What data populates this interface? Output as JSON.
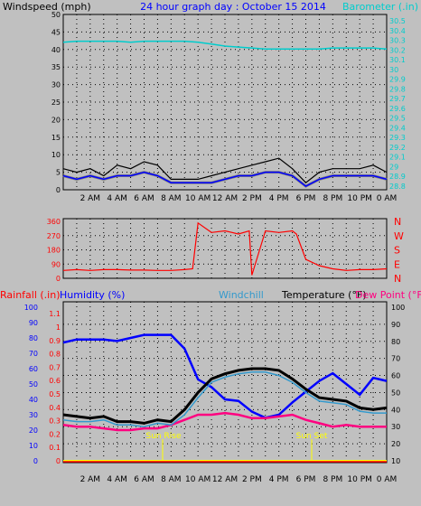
{
  "header": {
    "left_label": "Windspeed (mph)",
    "center_title": "24 hour graph day : October 15 2014",
    "right_label": "Barometer (.in)"
  },
  "colors": {
    "background": "#c0c0c0",
    "wind_speed": "#000000",
    "wind_avg": "#0000ff",
    "wind_gray": "#808080",
    "barometer": "#00cccc",
    "title_blue": "#0000ff",
    "direction": "#ff0000",
    "temperature": "#000000",
    "windchill": "#3399cc",
    "humidity": "#0000ff",
    "dewpoint": "#ff0080",
    "rain": "#ff0000",
    "rain_line": "#ffff00",
    "sun_marker": "#ffff00"
  },
  "time_labels": [
    "2 AM",
    "4 AM",
    "6 AM",
    "8 AM",
    "10 AM",
    "12 AM",
    "2 PM",
    "4 PM",
    "6 PM",
    "8 PM",
    "10 PM",
    "0 AM"
  ],
  "wind_panel": {
    "ylim": [
      0,
      50
    ],
    "yticks": [
      "0",
      "5",
      "10",
      "15",
      "20",
      "25",
      "30",
      "35",
      "40",
      "45",
      "50"
    ],
    "baro_ticks": [
      "28.8",
      "28.9",
      "29",
      "29.1",
      "29.2",
      "29.3",
      "29.4",
      "29.5",
      "29.6",
      "29.7",
      "29.8",
      "29.9",
      "30",
      "30.1",
      "30.2",
      "30.3",
      "30.4",
      "30.5"
    ]
  },
  "dir_panel": {
    "ylim": [
      0,
      360
    ],
    "yticks": [
      "0",
      "90",
      "180",
      "270",
      "360"
    ],
    "compass": [
      "N",
      "W",
      "S",
      "E",
      "N"
    ]
  },
  "temp_panel": {
    "labels": {
      "rainfall": "Rainfall (.in)",
      "humidity": "Humidity (%)",
      "windchill": "Windchill",
      "temperature": "Temperature (°F)",
      "dewpoint": "Dew Point (°F)"
    },
    "humidity_ticks": [
      "0",
      "10",
      "20",
      "30",
      "40",
      "50",
      "60",
      "70",
      "80",
      "90",
      "100"
    ],
    "rain_ticks": [
      "0",
      "0.1",
      "0.2",
      "0.3",
      "0.4",
      "0.5",
      "0.6",
      "0.7",
      "0.8",
      "0.9",
      "1",
      "1.1"
    ],
    "temp_ticks": [
      "10",
      "20",
      "30",
      "40",
      "50",
      "60",
      "70",
      "80",
      "90",
      "100"
    ],
    "sun_rise": "Sun Rise",
    "sun_set": "Sun Set"
  },
  "chart_data": [
    {
      "type": "line",
      "name": "wind",
      "x": [
        0,
        1,
        2,
        3,
        4,
        5,
        6,
        7,
        8,
        9,
        10,
        11,
        12,
        13,
        14,
        15,
        16,
        17,
        18,
        19,
        20,
        21,
        22,
        23,
        24
      ],
      "series": [
        {
          "name": "Windspeed (mph)",
          "values": [
            6,
            5,
            6,
            4,
            7,
            6,
            8,
            7,
            3,
            3,
            3,
            4,
            5,
            6,
            7,
            8,
            9,
            6,
            2,
            5,
            6,
            6,
            6,
            7,
            5
          ]
        },
        {
          "name": "",
          "values": [
            4,
            3,
            4,
            3,
            4,
            4,
            5,
            4,
            2,
            2,
            2,
            2,
            3,
            4,
            4,
            5,
            5,
            4,
            1,
            3,
            4,
            4,
            4,
            4,
            3
          ]
        },
        {
          "name": "Barometer (.in)",
          "values": [
            30.28,
            30.29,
            30.29,
            30.29,
            30.29,
            30.28,
            30.29,
            30.29,
            30.29,
            30.29,
            30.28,
            30.26,
            30.24,
            30.23,
            30.22,
            30.21,
            30.21,
            30.21,
            30.21,
            30.21,
            30.22,
            30.22,
            30.22,
            30.22,
            30.21
          ]
        }
      ]
    },
    {
      "type": "line",
      "name": "direction",
      "ylim": [
        0,
        360
      ],
      "x": [
        0,
        1,
        2,
        3,
        4,
        5,
        6,
        7,
        8,
        9,
        9.6,
        10,
        11,
        12,
        13,
        13.8,
        14,
        15,
        16,
        17,
        17.3,
        18,
        19,
        20,
        21,
        22,
        23,
        24
      ],
      "series": [
        {
          "name": "",
          "values": [
            50,
            55,
            50,
            55,
            55,
            52,
            52,
            50,
            50,
            55,
            60,
            350,
            290,
            300,
            280,
            300,
            20,
            300,
            290,
            300,
            280,
            120,
            80,
            60,
            50,
            55,
            55,
            60
          ]
        }
      ]
    },
    {
      "type": "line",
      "name": "temperature",
      "x": [
        0,
        1,
        2,
        3,
        4,
        5,
        6,
        7,
        8,
        9,
        10,
        11,
        12,
        13,
        14,
        15,
        16,
        17,
        18,
        19,
        20,
        21,
        22,
        23,
        24
      ],
      "series": [
        {
          "name": "Temperature (°F)",
          "values": [
            37,
            36,
            35,
            36,
            33,
            33,
            32,
            34,
            33,
            40,
            50,
            58,
            61,
            63,
            64,
            64,
            63,
            58,
            52,
            47,
            46,
            45,
            41,
            40,
            41
          ]
        },
        {
          "name": "Windchill",
          "values": [
            34,
            33,
            33,
            34,
            31,
            31,
            30,
            32,
            31,
            37,
            47,
            56,
            59,
            61,
            62,
            62,
            60,
            56,
            50,
            45,
            44,
            43,
            39,
            38,
            38
          ]
        },
        {
          "name": "Dew Point (°F)",
          "values": [
            31,
            30,
            30,
            29,
            28,
            28,
            29,
            29,
            31,
            34,
            37,
            37,
            38,
            37,
            35,
            35,
            36,
            37,
            34,
            32,
            30,
            31,
            30,
            30,
            30
          ]
        },
        {
          "name": "Humidity (%)",
          "values": [
            77,
            79,
            79,
            79,
            78,
            80,
            82,
            82,
            82,
            73,
            53,
            48,
            40,
            39,
            32,
            28,
            30,
            38,
            45,
            52,
            57,
            50,
            43,
            54,
            52
          ]
        },
        {
          "name": "Rainfall (.in)",
          "values": [
            0,
            0,
            0,
            0,
            0,
            0,
            0,
            0,
            0,
            0,
            0,
            0,
            0,
            0,
            0,
            0,
            0,
            0,
            0,
            0,
            0,
            0,
            0,
            0,
            0
          ]
        }
      ]
    }
  ]
}
